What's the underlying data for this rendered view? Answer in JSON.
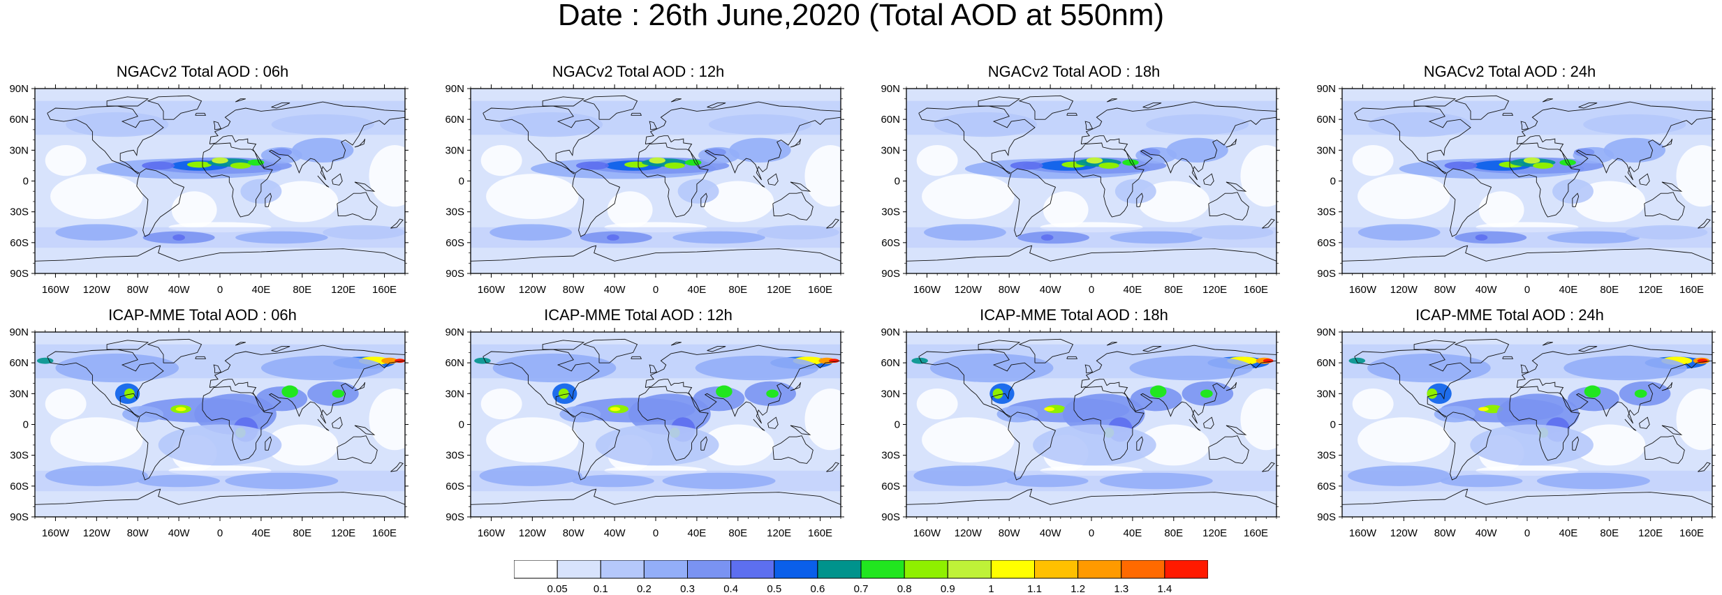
{
  "title": "Date : 26th June,2020 (Total AOD at 550nm)",
  "panels": [
    {
      "title": "NGACv2 Total AOD : 06h",
      "model": "NGACv2",
      "hour": 6
    },
    {
      "title": "NGACv2 Total AOD : 12h",
      "model": "NGACv2",
      "hour": 12
    },
    {
      "title": "NGACv2 Total AOD : 18h",
      "model": "NGACv2",
      "hour": 18
    },
    {
      "title": "NGACv2 Total AOD : 24h",
      "model": "NGACv2",
      "hour": 24
    },
    {
      "title": "ICAP-MME Total AOD : 06h",
      "model": "ICAP-MME",
      "hour": 6
    },
    {
      "title": "ICAP-MME Total AOD : 12h",
      "model": "ICAP-MME",
      "hour": 12
    },
    {
      "title": "ICAP-MME Total AOD : 18h",
      "model": "ICAP-MME",
      "hour": 18
    },
    {
      "title": "ICAP-MME Total AOD : 24h",
      "model": "ICAP-MME",
      "hour": 24
    }
  ],
  "axes": {
    "lat_labels": [
      "90N",
      "60N",
      "30N",
      "0",
      "30S",
      "60S",
      "90S"
    ],
    "lat_values": [
      90,
      60,
      30,
      0,
      -30,
      -60,
      -90
    ],
    "lon_labels": [
      "160W",
      "120W",
      "80W",
      "40W",
      "0",
      "40E",
      "80E",
      "120E",
      "160E"
    ],
    "lon_values": [
      -160,
      -120,
      -80,
      -40,
      0,
      40,
      80,
      120,
      160
    ],
    "lon_range": [
      -180,
      180
    ],
    "lat_range": [
      -90,
      90
    ]
  },
  "colorbar": {
    "labels": [
      "0.05",
      "0.1",
      "0.2",
      "0.3",
      "0.4",
      "0.5",
      "0.6",
      "0.7",
      "0.8",
      "0.9",
      "1",
      "1.1",
      "1.2",
      "1.3",
      "1.4"
    ],
    "colors": [
      "#ffffff",
      "#d8e3fc",
      "#b5c8fb",
      "#93aef8",
      "#7a93f2",
      "#5d6ff0",
      "#0a5fea",
      "#00938c",
      "#21e61f",
      "#8ff000",
      "#bff238",
      "#ffff00",
      "#ffc000",
      "#ff9a00",
      "#ff6a00",
      "#ff1a00"
    ]
  }
}
